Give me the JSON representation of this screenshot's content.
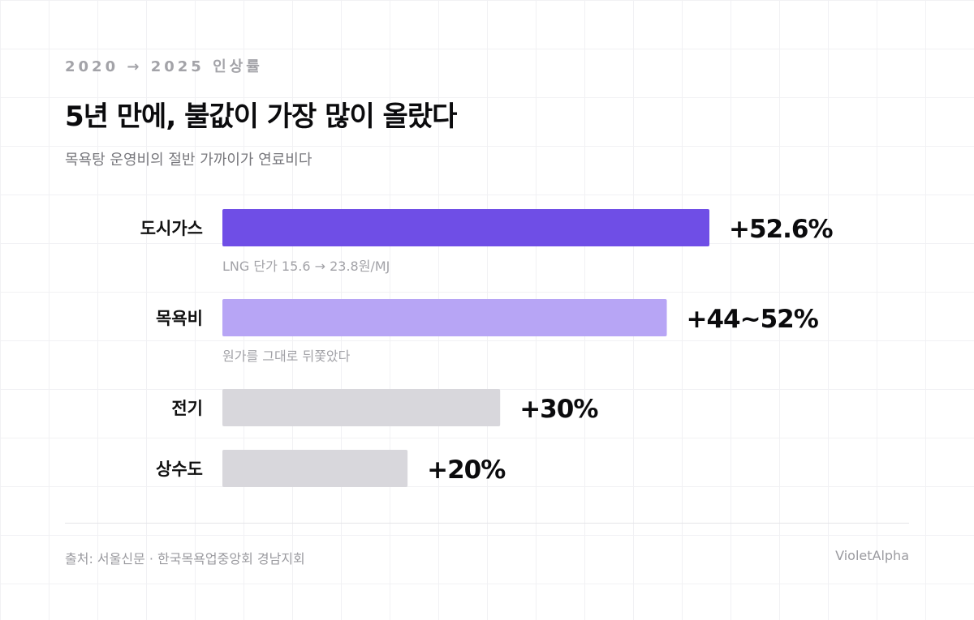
{
  "header": {
    "eyebrow": "2020 → 2025 인상률",
    "title": "5년 만에, 불값이 가장 많이 올랐다",
    "subtitle": "목욕탕 운영비의 절반 가까이가 연료비다"
  },
  "footer": {
    "source": "출처: 서울신문 · 한국목욕업중앙회 경남지회",
    "brand": "VioletAlpha"
  },
  "colors": {
    "primary": "#6f4ee6",
    "secondary": "#b7a5f5",
    "neutral": "#d8d7dc",
    "label": "#111111",
    "note": "#a2a2a7"
  },
  "chart_data": {
    "type": "bar",
    "orientation": "horizontal",
    "title": "5년 만에, 불값이 가장 많이 올랐다",
    "subtitle": "목욕탕 운영비의 절반 가까이가 연료비다",
    "xlabel": "",
    "ylabel": "",
    "xlim": [
      0,
      52.6
    ],
    "grid": false,
    "legend": "none",
    "categories": [
      "도시가스",
      "목욕비",
      "전기",
      "상수도"
    ],
    "values": [
      52.6,
      48,
      30,
      20
    ],
    "value_labels": [
      "+52.6%",
      "+44~52%",
      "+30%",
      "+20%"
    ],
    "notes": [
      "LNG 단가 15.6 → 23.8원/MJ",
      "원가를 그대로 뒤쫓았다",
      "",
      ""
    ],
    "bar_colors": [
      "#6f4ee6",
      "#b7a5f5",
      "#d8d7dc",
      "#d8d7dc"
    ]
  }
}
